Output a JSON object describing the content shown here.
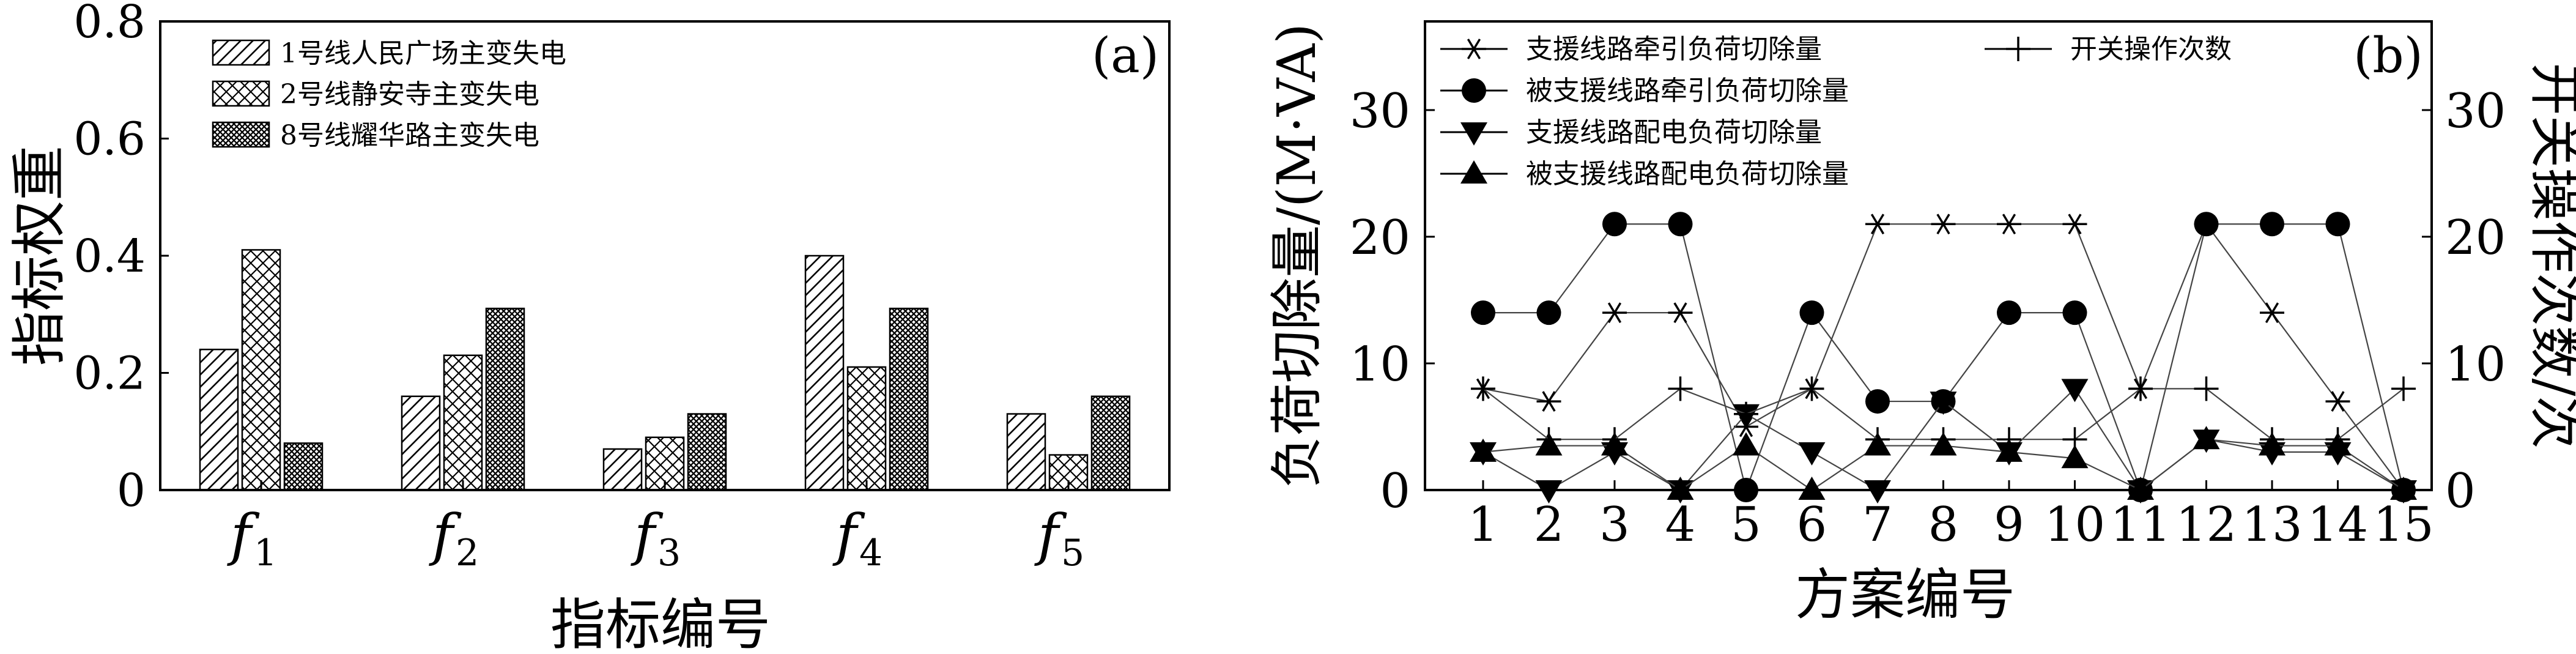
{
  "chart_data": [
    {
      "type": "bar",
      "panel_label": "(a)",
      "xlabel": "指标编号",
      "ylabel": "指标权重",
      "categories": [
        "f1",
        "f2",
        "f3",
        "f4",
        "f5"
      ],
      "category_labels": [
        {
          "base": "f",
          "sub": "1"
        },
        {
          "base": "f",
          "sub": "2"
        },
        {
          "base": "f",
          "sub": "3"
        },
        {
          "base": "f",
          "sub": "4"
        },
        {
          "base": "f",
          "sub": "5"
        }
      ],
      "ylim": [
        0,
        0.8
      ],
      "yticks": [
        "0",
        "0.2",
        "0.4",
        "0.6",
        "0.8"
      ],
      "ytick_values": [
        0,
        0.2,
        0.4,
        0.6,
        0.8
      ],
      "legend_position": "top-left",
      "series": [
        {
          "name": "1号线人民广场主变失电",
          "pattern": "diagonal-hatch",
          "values": [
            0.24,
            0.16,
            0.07,
            0.4,
            0.13
          ]
        },
        {
          "name": "2号线静安寺主变失电",
          "pattern": "cross-hatch",
          "values": [
            0.41,
            0.23,
            0.09,
            0.21,
            0.06
          ]
        },
        {
          "name": "8号线耀华路主变失电",
          "pattern": "dense-crosshatch",
          "values": [
            0.08,
            0.31,
            0.13,
            0.31,
            0.16
          ]
        }
      ]
    },
    {
      "type": "line",
      "panel_label": "(b)",
      "xlabel": "方案编号",
      "ylabel": "负荷切除量/(M·VA)",
      "y2label": "开关操作次数/次",
      "x": [
        1,
        2,
        3,
        4,
        5,
        6,
        7,
        8,
        9,
        10,
        11,
        12,
        13,
        14,
        15
      ],
      "xticks": [
        "1",
        "2",
        "3",
        "4",
        "5",
        "6",
        "7",
        "8",
        "9",
        "10",
        "11",
        "12",
        "13",
        "14",
        "15"
      ],
      "ylim": [
        0,
        37
      ],
      "yticks": [
        "0",
        "10",
        "20",
        "30"
      ],
      "ytick_values": [
        0,
        10,
        20,
        30
      ],
      "y2lim": [
        0,
        37
      ],
      "y2ticks": [
        "0",
        "10",
        "20",
        "30"
      ],
      "y2tick_values": [
        0,
        10,
        20,
        30
      ],
      "legend_position": "top",
      "series": [
        {
          "name": "支援线路牵引负荷切除量",
          "marker": "asterisk",
          "axis": "left",
          "values": [
            8,
            7,
            14,
            14,
            5,
            8,
            21,
            21,
            21,
            21,
            8,
            21,
            14,
            7,
            0
          ]
        },
        {
          "name": "被支援线路牵引负荷切除量",
          "marker": "circle",
          "axis": "left",
          "values": [
            14,
            14,
            21,
            21,
            0,
            14,
            7,
            7,
            14,
            14,
            0,
            21,
            21,
            21,
            0
          ]
        },
        {
          "name": "支援线路配电负荷切除量",
          "marker": "triangle-down",
          "axis": "left",
          "values": [
            3,
            0,
            3,
            0,
            6,
            3,
            0,
            7,
            3,
            8,
            0,
            4,
            3,
            3,
            0
          ]
        },
        {
          "name": "被支援线路配电负荷切除量",
          "marker": "triangle-up",
          "axis": "left",
          "values": [
            3,
            3.5,
            3.5,
            0,
            3.5,
            0,
            3.5,
            3.5,
            3,
            2.5,
            0,
            4,
            3.5,
            3.5,
            0
          ]
        },
        {
          "name": "开关操作次数",
          "marker": "plus",
          "axis": "right",
          "values": [
            8,
            4,
            4,
            8,
            6,
            8,
            4,
            4,
            4,
            4,
            8,
            8,
            4,
            4,
            8
          ]
        }
      ]
    }
  ]
}
